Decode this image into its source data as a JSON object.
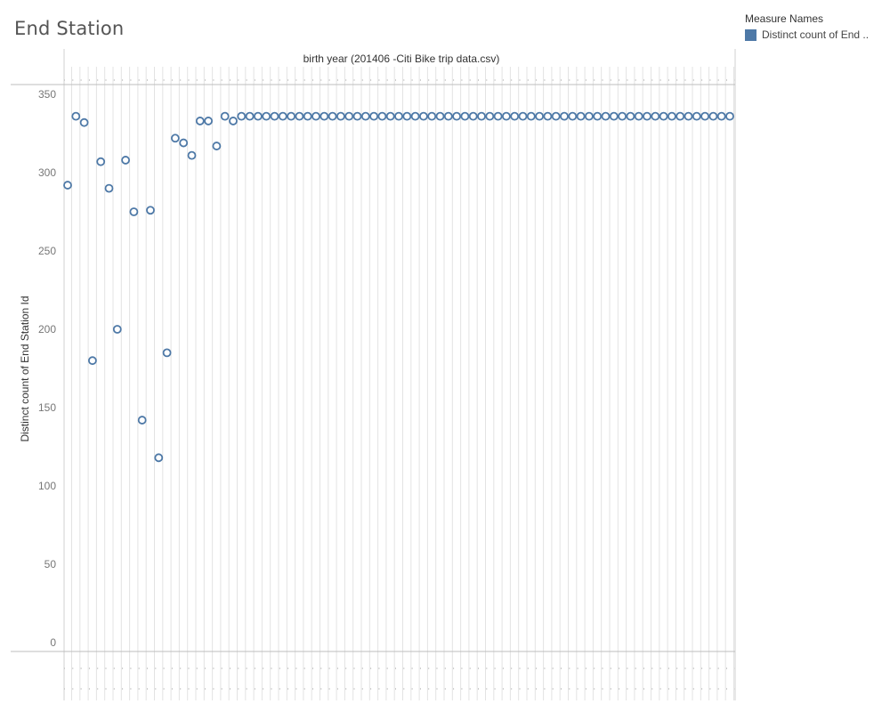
{
  "page": {
    "title": "End Station"
  },
  "legend": {
    "title": "Measure Names",
    "items": [
      {
        "label": "Distinct count of End ..",
        "color": "#4e79a7"
      }
    ]
  },
  "chart_data": {
    "type": "scatter",
    "mark_shape": "circle-open",
    "xlabel": "birth year (201406 -Citi Bike trip data.csv)",
    "ylabel": "Distinct count of End Station Id",
    "ylim": [
      0,
      350
    ],
    "yticks": [
      0,
      50,
      100,
      150,
      200,
      250,
      300,
      350
    ],
    "grid": true,
    "legend_position": "top-right",
    "color": "#4e79a7",
    "series": [
      {
        "name": "Distinct count of End ..",
        "values": [
          292,
          336,
          332,
          180,
          307,
          290,
          200,
          308,
          275,
          142,
          276,
          118,
          185,
          322,
          319,
          311,
          333,
          333,
          317,
          336,
          333,
          336,
          336,
          336,
          336,
          336,
          336,
          336,
          336,
          336,
          336,
          336,
          336,
          336,
          336,
          336,
          336,
          336,
          336,
          336,
          336,
          336,
          336,
          336,
          336,
          336,
          336,
          336,
          336,
          336,
          336,
          336,
          336,
          336,
          336,
          336,
          336,
          336,
          336,
          336,
          336,
          336,
          336,
          336,
          336,
          336,
          336,
          336,
          336,
          336,
          336,
          336,
          336,
          336,
          336,
          336,
          336,
          336,
          336,
          336,
          336
        ]
      }
    ]
  }
}
